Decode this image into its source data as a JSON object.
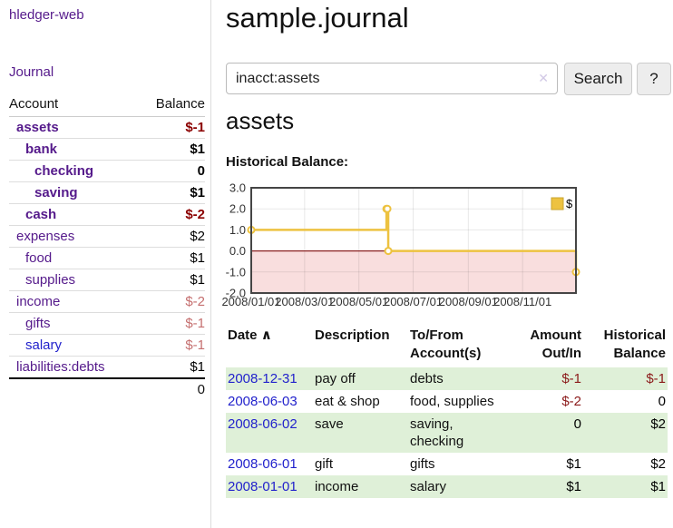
{
  "app": {
    "brand": "hledger-web",
    "nav_journal": "Journal"
  },
  "sidebar": {
    "headers": {
      "account": "Account",
      "balance": "Balance"
    },
    "accounts": [
      {
        "name": "assets",
        "level": 1,
        "bold": true,
        "name_color": "#551a8b",
        "balance": "$-1",
        "balance_color": "#8b0000"
      },
      {
        "name": "bank",
        "level": 2,
        "bold": true,
        "name_color": "#551a8b",
        "balance": "$1",
        "balance_color": "#000000"
      },
      {
        "name": "checking",
        "level": 3,
        "bold": true,
        "name_color": "#551a8b",
        "balance": "0",
        "balance_color": "#000000"
      },
      {
        "name": "saving",
        "level": 3,
        "bold": true,
        "name_color": "#551a8b",
        "balance": "$1",
        "balance_color": "#000000"
      },
      {
        "name": "cash",
        "level": 2,
        "bold": true,
        "name_color": "#551a8b",
        "balance": "$-2",
        "balance_color": "#8b0000"
      },
      {
        "name": "expenses",
        "level": 1,
        "bold": false,
        "name_color": "#551a8b",
        "balance": "$2",
        "balance_color": "#000000"
      },
      {
        "name": "food",
        "level": 2,
        "bold": false,
        "name_color": "#551a8b",
        "balance": "$1",
        "balance_color": "#000000"
      },
      {
        "name": "supplies",
        "level": 2,
        "bold": false,
        "name_color": "#551a8b",
        "balance": "$1",
        "balance_color": "#000000"
      },
      {
        "name": "income",
        "level": 1,
        "bold": false,
        "name_color": "#551a8b",
        "balance": "$-2",
        "balance_color": "#c56f6f"
      },
      {
        "name": "gifts",
        "level": 2,
        "bold": false,
        "name_color": "#551a8b",
        "balance": "$-1",
        "balance_color": "#c56f6f"
      },
      {
        "name": "salary",
        "level": 2,
        "bold": false,
        "name_color": "#2222cc",
        "balance": "$-1",
        "balance_color": "#c56f6f"
      },
      {
        "name": "liabilities:debts",
        "level": 1,
        "bold": false,
        "name_color": "#551a8b",
        "balance": "$1",
        "balance_color": "#000000"
      }
    ],
    "total": "0"
  },
  "main": {
    "title": "sample.journal",
    "search": {
      "value": "inacct:assets",
      "clear_icon": "✕",
      "search_button": "Search",
      "help_button": "?"
    },
    "account_heading": "assets",
    "section_label": "Historical Balance:"
  },
  "chart_data": {
    "type": "line",
    "title": "Historical Balance of assets",
    "step": true,
    "x_range": [
      "2008-01-01",
      "2008-12-31"
    ],
    "ylim": [
      -2.0,
      3.0
    ],
    "yticks": [
      3.0,
      2.0,
      1.0,
      0.0,
      -1.0,
      -2.0
    ],
    "xticks": [
      {
        "label": "2008/01/01",
        "date": "2008-01-01"
      },
      {
        "label": "2008/03/01",
        "date": "2008-03-01"
      },
      {
        "label": "2008/05/01",
        "date": "2008-05-01"
      },
      {
        "label": "2008/07/01",
        "date": "2008-07-01"
      },
      {
        "label": "2008/09/01",
        "date": "2008-09-01"
      },
      {
        "label": "2008/11/01",
        "date": "2008-11-01"
      }
    ],
    "series": [
      {
        "name": "$",
        "color": "#edc240",
        "points": [
          {
            "date": "2008-01-01",
            "value": 1
          },
          {
            "date": "2008-06-01",
            "value": 2
          },
          {
            "date": "2008-06-02",
            "value": 2
          },
          {
            "date": "2008-06-03",
            "value": 0
          },
          {
            "date": "2008-12-31",
            "value": -1
          }
        ]
      }
    ],
    "legend_position": "top-right",
    "grid": true,
    "negative_fill_color": "#f9dede",
    "zero_line_color": "#8b2323",
    "border_color": "#454545",
    "tick_color": "#333333"
  },
  "register": {
    "columns": [
      {
        "label": "Date",
        "sort_icon": "∧"
      },
      {
        "label": "Description"
      },
      {
        "label": "To/From Account(s)"
      },
      {
        "label": "Amount Out/In"
      },
      {
        "label": "Historical Balance"
      }
    ],
    "rows": [
      {
        "date": "2008-12-31",
        "description": "pay off",
        "accounts": "debts",
        "amount": "$-1",
        "amount_color": "#8b1a1a",
        "balance": "$-1",
        "balance_color": "#8b1a1a"
      },
      {
        "date": "2008-06-03",
        "description": "eat & shop",
        "accounts": "food, supplies",
        "amount": "$-2",
        "amount_color": "#8b1a1a",
        "balance": "0",
        "balance_color": "#000000"
      },
      {
        "date": "2008-06-02",
        "description": "save",
        "accounts": "saving, checking",
        "amount": "0",
        "amount_color": "#000000",
        "balance": "$2",
        "balance_color": "#000000"
      },
      {
        "date": "2008-06-01",
        "description": "gift",
        "accounts": "gifts",
        "amount": "$1",
        "amount_color": "#000000",
        "balance": "$2",
        "balance_color": "#000000"
      },
      {
        "date": "2008-01-01",
        "description": "income",
        "accounts": "salary",
        "amount": "$1",
        "amount_color": "#000000",
        "balance": "$1",
        "balance_color": "#000000"
      }
    ],
    "row_stripe_color": "#dff0d8",
    "date_link_color": "#2222cc"
  }
}
